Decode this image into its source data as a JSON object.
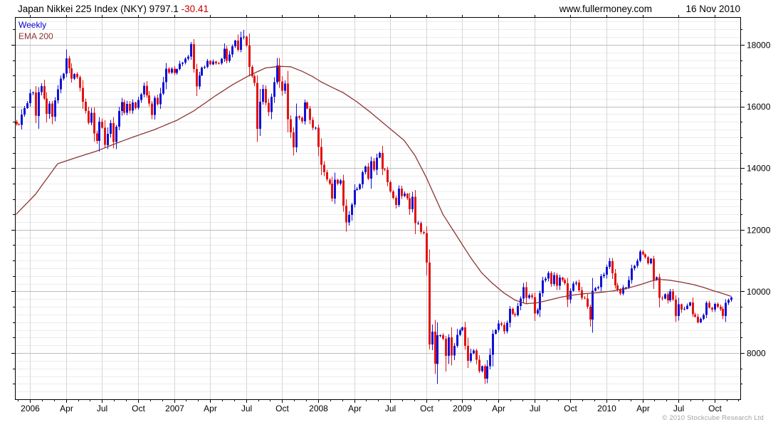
{
  "header": {
    "title": "Japan Nikkei 225 Index (NKY)",
    "last_value": "9797.1",
    "change": "-30.41",
    "site": "www.fullermoney.com",
    "date": "16 Nov 2010"
  },
  "legend": {
    "series1": "Weekly",
    "series2": "EMA 200"
  },
  "footer": {
    "copyright": "© 2010 Stockcube Research Ltd"
  },
  "colors": {
    "up": "#1111d6",
    "down": "#e31212",
    "ema": "#8e3434",
    "legend_weekly": "#0000cc",
    "change": "#c00000",
    "grid_minor": "#ececec",
    "grid_major": "#bdbdbd",
    "grid_vertical": "#d6d6d6",
    "axis": "#000000",
    "tick_label": "#000000",
    "copyright": "#a3a3a3"
  },
  "chart_data": {
    "type": "candlestick",
    "interval": "weekly",
    "title": "Japan Nikkei 225 Index (NKY)",
    "legend_entries": [
      "Weekly",
      "EMA 200"
    ],
    "ylim": [
      6500,
      18900
    ],
    "y_ticks": [
      8000,
      10000,
      12000,
      14000,
      16000,
      18000
    ],
    "y_minor_tick_step": 500,
    "grid_minor_step": 250,
    "x_tick_labels": [
      "2006",
      "Apr",
      "Jul",
      "Oct",
      "2007",
      "Apr",
      "Jul",
      "Oct",
      "2008",
      "Apr",
      "Jul",
      "Oct",
      "2009",
      "Apr",
      "Jul",
      "Oct",
      "2010",
      "Apr",
      "Jul",
      "Oct"
    ],
    "x_tick_indices": [
      5,
      18,
      31,
      44,
      57,
      70,
      83,
      96,
      109,
      122,
      135,
      148,
      161,
      174,
      187,
      200,
      213,
      226,
      239,
      252
    ],
    "first_open": 15500,
    "last_value": 9797.1,
    "change": -30.41,
    "weekly_closes": [
      15421,
      15404,
      15739,
      15941,
      16111,
      16428,
      16454,
      15696,
      16460,
      16660,
      16260,
      15760,
      16100,
      15663,
      16200,
      16560,
      16906,
      17059,
      17563,
      17233,
      16906,
      17050,
      16950,
      16600,
      16155,
      15857,
      15467,
      15789,
      15124,
      14879,
      15505,
      15307,
      14750,
      15114,
      15457,
      14845,
      15342,
      15857,
      16140,
      15794,
      16080,
      15866,
      16127,
      15950,
      16214,
      16399,
      16670,
      16360,
      16090,
      15725,
      16274,
      16070,
      16420,
      16790,
      17225,
      17100,
      17226,
      17091,
      17210,
      17383,
      17421,
      17547,
      17621,
      18020,
      17218,
      16642,
      17010,
      17263,
      17287,
      17484,
      17364,
      17452,
      17400,
      17394,
      17553,
      17875,
      17481,
      17690,
      17958,
      18138,
      17835,
      18240,
      18262,
      17977,
      17284,
      16979,
      16764,
      15273,
      16148,
      16569,
      16122,
      15821,
      16312,
      16785,
      17331,
      16814,
      16505,
      16737,
      15583,
      15154,
      14669,
      15680,
      15628,
      15514,
      16130,
      15932,
      15564,
      15307,
      15308,
      14691,
      14110,
      13861,
      13629,
      13497,
      13017,
      13622,
      13500,
      13603,
      12782,
      12241,
      12482,
      12820,
      13293,
      13323,
      13476,
      13863,
      14049,
      13655,
      14219,
      13942,
      14338,
      14489,
      13973,
      13942,
      13544,
      13237,
      13039,
      12804,
      13334,
      13094,
      13168,
      13019,
      12666,
      13072,
      12212,
      12215,
      11921,
      11893,
      10938,
      8276,
      8693,
      7649,
      8577,
      8583,
      8463,
      7911,
      8512,
      7918,
      8236,
      8589,
      8740,
      8837,
      8230,
      7745,
      7994,
      8077,
      7779,
      7416,
      7568,
      7173,
      7569,
      7945,
      8626,
      8750,
      8964,
      8908,
      8707,
      8977,
      9432,
      9265,
      9225,
      9522,
      9768,
      10136,
      9786,
      9877,
      9816,
      9287,
      9395,
      9944,
      10357,
      10412,
      10597,
      10238,
      10534,
      10187,
      10444,
      10371,
      10266,
      9731,
      10016,
      10257,
      10283,
      10035,
      9789,
      9770,
      9497,
      9082,
      10022,
      10108,
      10142,
      10495,
      10546,
      10798,
      10982,
      10591,
      10198,
      10057,
      9932,
      10123,
      10126,
      10369,
      10751,
      10824,
      10996,
      11286,
      11204,
      11102,
      10914,
      11057,
      10365,
      10462,
      9785,
      9763,
      9901,
      9705,
      9995,
      9737,
      9204,
      9585,
      9408,
      9431,
      9537,
      9642,
      9253,
      9179,
      8991,
      9114,
      9239,
      9626,
      9472,
      9404,
      9589,
      9500,
      9427,
      9202,
      9626,
      9725,
      9797.1
    ],
    "wick_overrides": {
      "63": [
        18090,
        null
      ],
      "80": [
        18340,
        null
      ],
      "81": [
        18430,
        null
      ],
      "82": [
        18490,
        null
      ],
      "83": [
        18300,
        null
      ],
      "149": [
        null,
        8116
      ],
      "152": [
        null,
        6995
      ],
      "155": [
        null,
        7406
      ],
      "170": [
        null,
        7021
      ]
    },
    "ema_200_keyframes": [
      [
        0,
        12500
      ],
      [
        7,
        13150
      ],
      [
        15,
        14140
      ],
      [
        22,
        14350
      ],
      [
        29,
        14550
      ],
      [
        36,
        14800
      ],
      [
        42,
        15000
      ],
      [
        50,
        15250
      ],
      [
        58,
        15550
      ],
      [
        64,
        15850
      ],
      [
        72,
        16350
      ],
      [
        78,
        16700
      ],
      [
        84,
        17000
      ],
      [
        90,
        17250
      ],
      [
        95,
        17300
      ],
      [
        99,
        17290
      ],
      [
        103,
        17150
      ],
      [
        107,
        16970
      ],
      [
        110,
        16800
      ],
      [
        114,
        16620
      ],
      [
        118,
        16450
      ],
      [
        123,
        16150
      ],
      [
        128,
        15800
      ],
      [
        132,
        15500
      ],
      [
        136,
        15200
      ],
      [
        140,
        14900
      ],
      [
        144,
        14400
      ],
      [
        148,
        13700
      ],
      [
        152,
        12900
      ],
      [
        154,
        12500
      ],
      [
        159,
        11800
      ],
      [
        164,
        11100
      ],
      [
        168,
        10600
      ],
      [
        172,
        10250
      ],
      [
        176,
        9950
      ],
      [
        180,
        9720
      ],
      [
        184,
        9600
      ],
      [
        188,
        9630
      ],
      [
        192,
        9710
      ],
      [
        196,
        9800
      ],
      [
        200,
        9870
      ],
      [
        205,
        9925
      ],
      [
        210,
        9960
      ],
      [
        215,
        10010
      ],
      [
        220,
        10090
      ],
      [
        225,
        10210
      ],
      [
        229,
        10330
      ],
      [
        232,
        10390
      ],
      [
        236,
        10360
      ],
      [
        240,
        10300
      ],
      [
        244,
        10230
      ],
      [
        248,
        10130
      ],
      [
        252,
        10010
      ],
      [
        255,
        9930
      ],
      [
        258,
        9840
      ]
    ]
  }
}
